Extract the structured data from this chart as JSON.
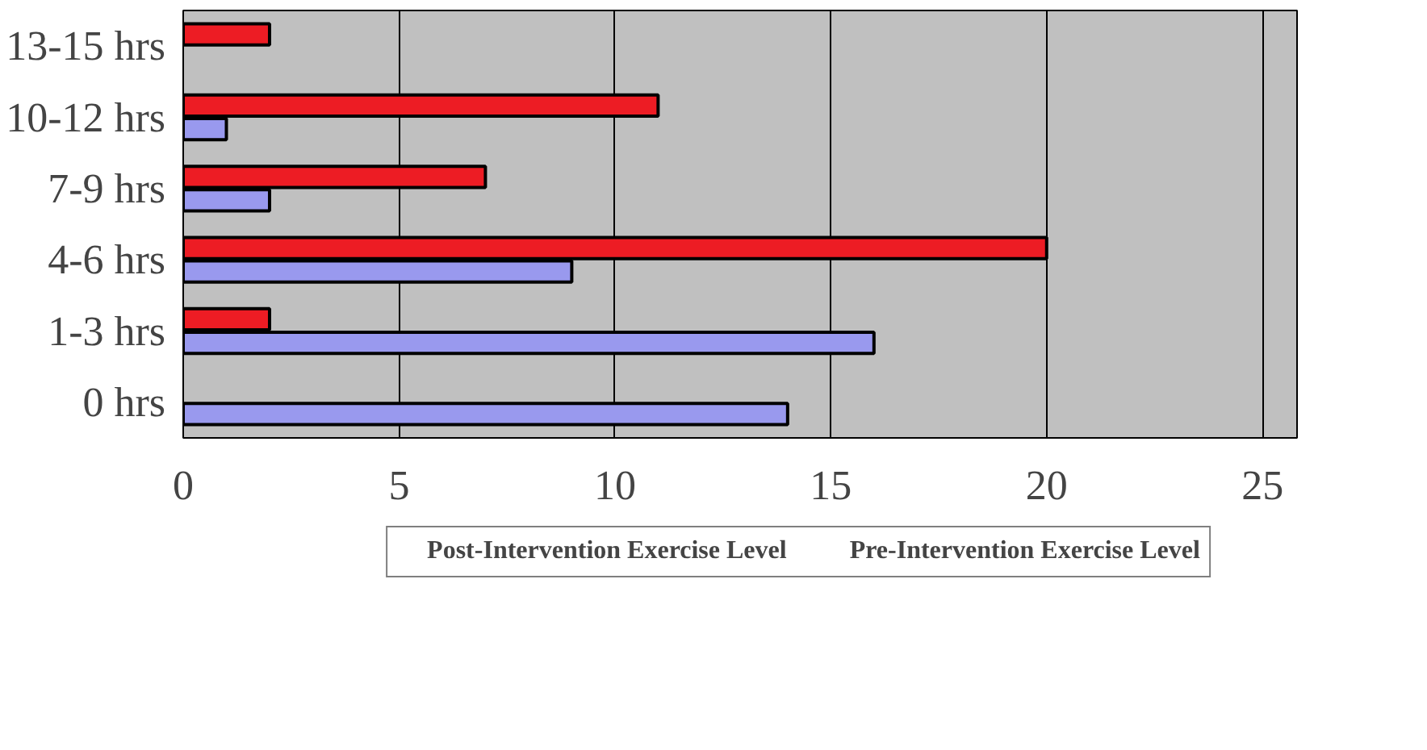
{
  "chart_data": {
    "type": "bar",
    "orientation": "horizontal",
    "categories": [
      "13-15 hrs",
      "10-12 hrs",
      "7-9 hrs",
      "4-6 hrs",
      "1-3 hrs",
      "0 hrs"
    ],
    "series": [
      {
        "name": "Post-Intervention Exercise Level",
        "color": "#ed1c24",
        "values": [
          2,
          11,
          7,
          20,
          2,
          null
        ]
      },
      {
        "name": "Pre-Intervention Exercise Level",
        "color": "#9999ee",
        "values": [
          null,
          1,
          2,
          9,
          16,
          14
        ]
      }
    ],
    "xlim": [
      0,
      25.8
    ],
    "xticks": [
      0,
      5,
      10,
      15,
      20,
      25
    ],
    "grid": "x",
    "legend": "bottom"
  }
}
